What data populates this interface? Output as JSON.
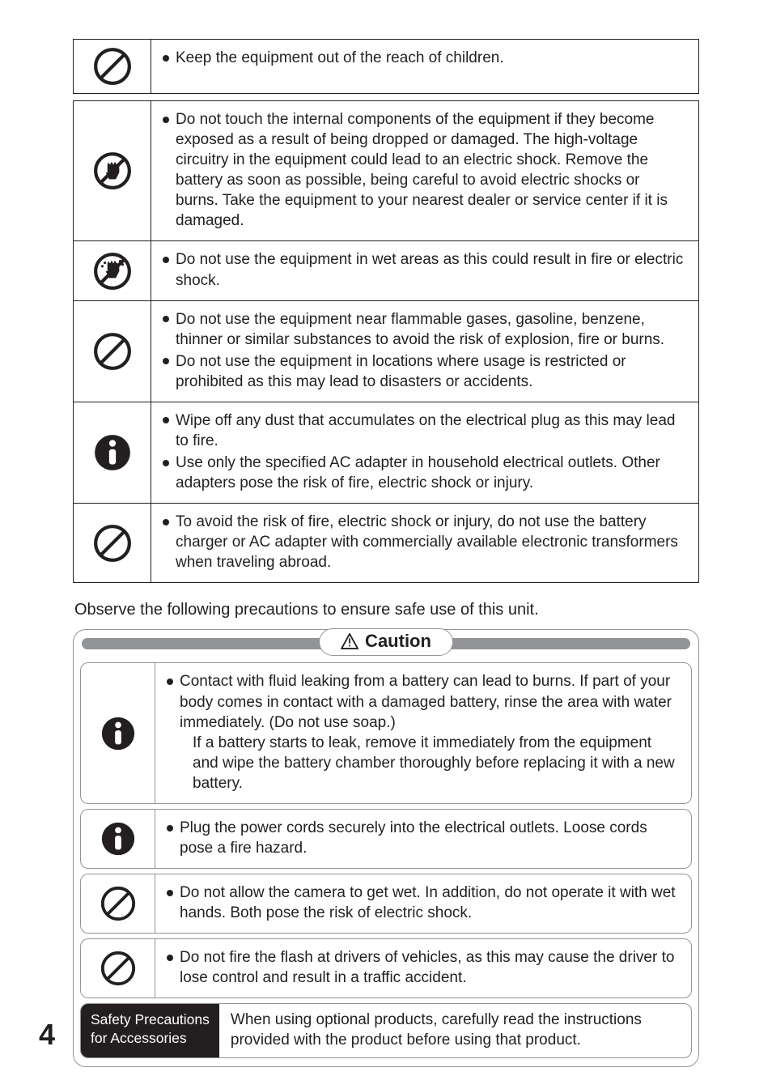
{
  "warning_rows": [
    {
      "icon": "prohibit",
      "items": [
        "Keep the equipment out of the reach of children."
      ]
    },
    {
      "icon": "no-touch",
      "items": [
        "Do not touch the internal components of the equipment if they become exposed as a result of being dropped or damaged. The high-voltage circuitry in the equipment could lead to an electric shock. Remove the battery as soon as possible, being careful to avoid electric shocks or burns. Take the equipment to your nearest dealer or service center if it is damaged."
      ]
    },
    {
      "icon": "no-wet",
      "items": [
        "Do not use the equipment in wet areas as this could result in fire or electric shock."
      ]
    },
    {
      "icon": "prohibit",
      "items": [
        "Do not use the equipment near flammable gases, gasoline, benzene, thinner or similar substances to avoid the risk of explosion, fire or burns.",
        "Do not use the equipment in locations where usage is restricted or prohibited as this may lead to disasters or accidents."
      ]
    },
    {
      "icon": "mandatory",
      "items": [
        "Wipe off any dust that accumulates on the electrical plug as this may lead to fire.",
        "Use only the specified AC adapter in household electrical outlets. Other adapters pose the risk of fire, electric shock or injury."
      ]
    },
    {
      "icon": "prohibit",
      "items": [
        "To avoid the risk of fire, electric shock or injury, do not use the battery charger or AC adapter with commercially available electronic transformers when traveling abroad."
      ]
    }
  ],
  "intro": "Observe the following precautions to ensure safe use of this unit.",
  "caution_label": "Caution",
  "caution_rows": [
    {
      "icon": "mandatory",
      "items": [
        "Contact with fluid leaking from a battery can lead to burns. If part of your body comes in contact with a damaged battery, rinse the area with water immediately. (Do not use soap.)\nIf a battery starts to leak, remove it immediately from the equipment and wipe the battery chamber thoroughly before replacing it with a new battery."
      ]
    },
    {
      "icon": "mandatory",
      "items": [
        "Plug the power cords securely into the electrical outlets. Loose cords pose a fire hazard."
      ]
    },
    {
      "icon": "prohibit",
      "items": [
        "Do not allow the camera to get wet. In addition, do not operate it with wet hands. Both pose the risk of electric shock."
      ]
    },
    {
      "icon": "prohibit",
      "items": [
        "Do not fire the flash at drivers of vehicles, as this may cause the driver to lose control and result in a traffic accident."
      ]
    }
  ],
  "accessory": {
    "label_line1": "Safety Precautions",
    "label_line2": "for Accessories",
    "text": "When using optional products, carefully read the instructions provided with the product before using that product."
  },
  "page_number": "4"
}
